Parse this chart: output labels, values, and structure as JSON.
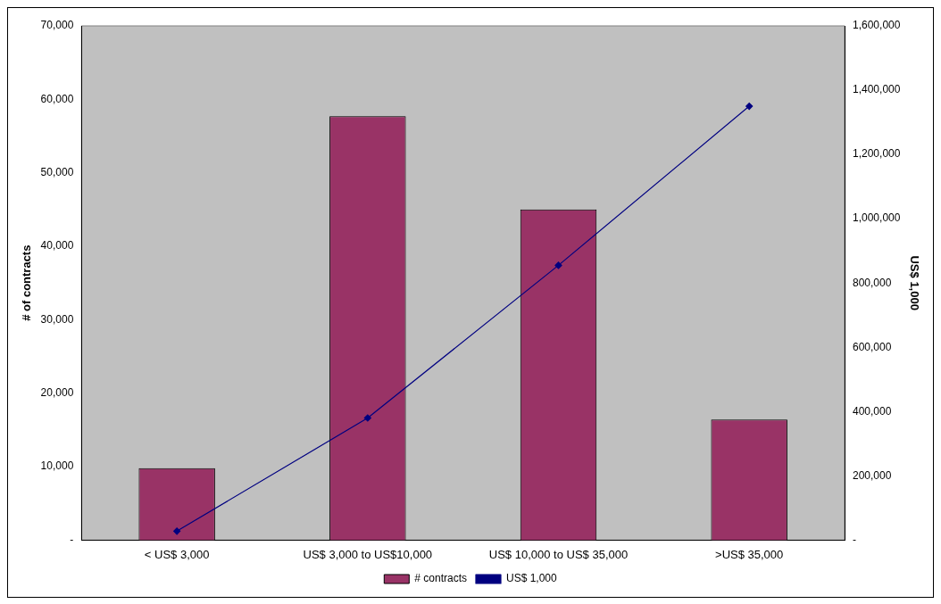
{
  "chart_data": {
    "type": "bar",
    "categories": [
      "< US$ 3,000",
      "US$ 3,000 to US$10,000",
      "US$ 10,000 to US$ 35,000",
      ">US$ 35,000"
    ],
    "ylabel": "# of contracts",
    "y2label": "US$ 1,000",
    "series": [
      {
        "name": "# contracts",
        "color": "#993366",
        "values": [
          9800,
          57700,
          45000,
          16400
        ]
      },
      {
        "name": "US$ 1,000",
        "type": "line",
        "axis": "y2",
        "color": "#000080",
        "values": [
          28000,
          380000,
          855000,
          1350000
        ]
      }
    ],
    "ylim": [
      0,
      70000
    ],
    "yticks": [
      {
        "value": 0,
        "label": "-"
      },
      {
        "value": 10000,
        "label": "10,000"
      },
      {
        "value": 20000,
        "label": "20,000"
      },
      {
        "value": 30000,
        "label": "30,000"
      },
      {
        "value": 40000,
        "label": "40,000"
      },
      {
        "value": 50000,
        "label": "50,000"
      },
      {
        "value": 60000,
        "label": "60,000"
      },
      {
        "value": 70000,
        "label": "70,000"
      }
    ],
    "y2lim": [
      0,
      1600000
    ],
    "y2ticks": [
      {
        "value": 0,
        "label": "-"
      },
      {
        "value": 200000,
        "label": "200,000"
      },
      {
        "value": 400000,
        "label": "400,000"
      },
      {
        "value": 600000,
        "label": "600,000"
      },
      {
        "value": 800000,
        "label": "800,000"
      },
      {
        "value": 1000000,
        "label": "1,000,000"
      },
      {
        "value": 1200000,
        "label": "1,200,000"
      },
      {
        "value": 1400000,
        "label": "1,400,000"
      },
      {
        "value": 1600000,
        "label": "1,600,000"
      }
    ],
    "grid": false,
    "legend": "bottom",
    "marker": "diamond",
    "line_style": "solid"
  }
}
